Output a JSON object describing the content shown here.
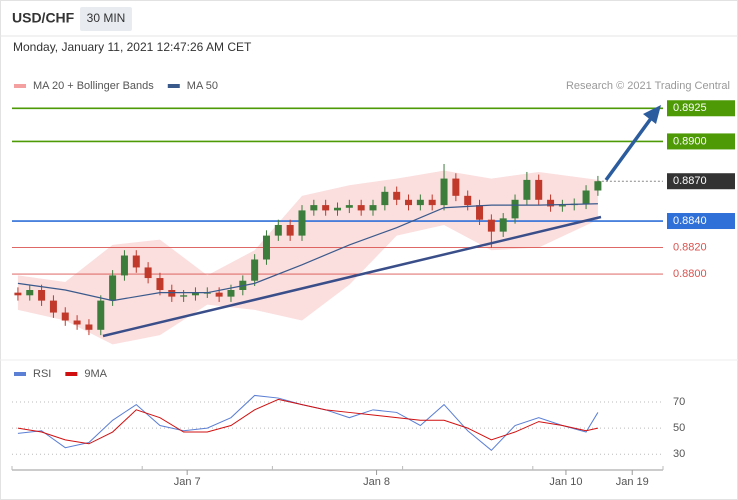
{
  "header": {
    "symbol": "USD/CHF",
    "interval": "30 MIN",
    "timestamp": "Monday, January 11, 2021 12:47:26 AM CET"
  },
  "chart_data": [
    {
      "type": "candlestick",
      "annotation": "Research © 2021 Trading Central",
      "xlim": [
        -0.5,
        54.5
      ],
      "ylim": [
        0.8739,
        0.8935
      ],
      "up_color": "#3c7d3c",
      "down_color": "#c0392b",
      "open": [
        0.8786,
        0.8784,
        0.8788,
        0.878,
        0.8771,
        0.8765,
        0.8762,
        0.8758,
        0.878,
        0.8799,
        0.8814,
        0.8805,
        0.8797,
        0.8788,
        0.8783,
        0.8784,
        0.8786,
        0.8786,
        0.8783,
        0.8788,
        0.8795,
        0.8811,
        0.8829,
        0.8837,
        0.8829,
        0.8848,
        0.8852,
        0.8848,
        0.885,
        0.8852,
        0.8848,
        0.8852,
        0.8862,
        0.8856,
        0.8852,
        0.8856,
        0.8852,
        0.8872,
        0.8859,
        0.8852,
        0.8841,
        0.8832,
        0.8842,
        0.8856,
        0.8871,
        0.8856,
        0.8851,
        0.8852,
        0.8853,
        0.8863
      ],
      "high": [
        0.879,
        0.8792,
        0.8792,
        0.8784,
        0.8775,
        0.8769,
        0.8766,
        0.8784,
        0.8803,
        0.8818,
        0.8818,
        0.8809,
        0.8801,
        0.8792,
        0.8788,
        0.879,
        0.879,
        0.879,
        0.8792,
        0.8799,
        0.8815,
        0.8833,
        0.8841,
        0.8841,
        0.8852,
        0.8856,
        0.8856,
        0.8854,
        0.8856,
        0.8856,
        0.8856,
        0.8866,
        0.8866,
        0.886,
        0.886,
        0.886,
        0.8883,
        0.8876,
        0.8863,
        0.8856,
        0.8845,
        0.8846,
        0.886,
        0.8877,
        0.8875,
        0.886,
        0.8856,
        0.8857,
        0.8867,
        0.8874
      ],
      "low": [
        0.878,
        0.878,
        0.8776,
        0.8767,
        0.8761,
        0.8758,
        0.8754,
        0.8754,
        0.8776,
        0.8795,
        0.8801,
        0.8793,
        0.8784,
        0.8779,
        0.8779,
        0.878,
        0.8782,
        0.8779,
        0.8779,
        0.8784,
        0.8791,
        0.8807,
        0.8825,
        0.8825,
        0.8825,
        0.8844,
        0.8844,
        0.8844,
        0.8846,
        0.8844,
        0.8844,
        0.8848,
        0.8852,
        0.8848,
        0.8848,
        0.8848,
        0.8848,
        0.8855,
        0.8848,
        0.8837,
        0.882,
        0.8828,
        0.8838,
        0.8852,
        0.8852,
        0.8847,
        0.8847,
        0.8848,
        0.8849,
        0.8859
      ],
      "close": [
        0.8784,
        0.8788,
        0.878,
        0.8771,
        0.8765,
        0.8762,
        0.8758,
        0.878,
        0.8799,
        0.8814,
        0.8805,
        0.8797,
        0.8788,
        0.8783,
        0.8784,
        0.8786,
        0.8786,
        0.8783,
        0.8788,
        0.8795,
        0.8811,
        0.8829,
        0.8837,
        0.8829,
        0.8848,
        0.8852,
        0.8848,
        0.885,
        0.8852,
        0.8848,
        0.8852,
        0.8862,
        0.8856,
        0.8852,
        0.8856,
        0.8852,
        0.8872,
        0.8859,
        0.8852,
        0.8841,
        0.8832,
        0.8842,
        0.8856,
        0.8871,
        0.8856,
        0.8851,
        0.8852,
        0.8853,
        0.8863,
        0.887
      ],
      "series": [
        {
          "name": "MA 20 + Bollinger Bands",
          "color": "#f4a0a0",
          "x": [
            0,
            4,
            8,
            12,
            16,
            20,
            24,
            28,
            32,
            36,
            40,
            44,
            49
          ],
          "upper": [
            0.8799,
            0.8794,
            0.8822,
            0.8826,
            0.8799,
            0.8818,
            0.8859,
            0.8867,
            0.8872,
            0.8878,
            0.8872,
            0.8877,
            0.8871
          ],
          "lower": [
            0.8773,
            0.8765,
            0.8747,
            0.8754,
            0.8777,
            0.8773,
            0.8765,
            0.8792,
            0.8829,
            0.8837,
            0.8818,
            0.882,
            0.8841
          ]
        },
        {
          "name": "MA 50",
          "color": "#3a5a8c",
          "x": [
            0,
            4,
            8,
            12,
            16,
            20,
            24,
            28,
            32,
            36,
            40,
            44,
            49
          ],
          "values": [
            0.8793,
            0.8788,
            0.878,
            0.8786,
            0.8786,
            0.8793,
            0.8807,
            0.8822,
            0.8835,
            0.885,
            0.8852,
            0.8852,
            0.8853
          ]
        }
      ],
      "levels": [
        {
          "value": 0.8925,
          "label": "0.8925",
          "color": "#4d9a06",
          "boxed": true,
          "dotted": false
        },
        {
          "value": 0.89,
          "label": "0.8900",
          "color": "#4d9a06",
          "boxed": true,
          "dotted": false
        },
        {
          "value": 0.887,
          "label": "0.8870",
          "color": "#333333",
          "boxed": true,
          "dotted": true
        },
        {
          "value": 0.884,
          "label": "0.8840",
          "color": "#2f6fd8",
          "boxed": true,
          "dotted": false
        },
        {
          "value": 0.882,
          "label": "0.8820",
          "color": "#d9534f",
          "boxed": false,
          "dotted": false
        },
        {
          "value": 0.88,
          "label": "0.8800",
          "color": "#d9534f",
          "boxed": false,
          "dotted": false
        }
      ]
    },
    {
      "type": "line",
      "xlim": [
        -0.5,
        54.5
      ],
      "ylim": [
        21,
        83
      ],
      "yticks": [
        30,
        50,
        70
      ],
      "grid": true,
      "xticks": [
        {
          "value": 14.3,
          "label": "Jan 7"
        },
        {
          "value": 30.3,
          "label": "Jan 8"
        },
        {
          "value": 46.3,
          "label": "Jan 10"
        },
        {
          "value": 51.9,
          "label": "Jan 19"
        }
      ],
      "series": [
        {
          "name": "RSI",
          "color": "#5b7fd4",
          "x": [
            0,
            2,
            4,
            6,
            8,
            10,
            12,
            14,
            16,
            18,
            20,
            22,
            24,
            26,
            28,
            30,
            32,
            34,
            36,
            38,
            40,
            42,
            44,
            46,
            48,
            49
          ],
          "values": [
            46,
            48,
            35,
            39,
            56,
            68,
            52,
            48,
            50,
            58,
            75,
            73,
            68,
            64,
            58,
            64,
            62,
            52,
            68,
            48,
            33,
            52,
            58,
            52,
            47,
            62
          ]
        },
        {
          "name": "9MA",
          "color": "#d01010",
          "x": [
            0,
            2,
            4,
            6,
            8,
            10,
            12,
            14,
            16,
            18,
            20,
            22,
            24,
            26,
            28,
            30,
            32,
            34,
            36,
            38,
            40,
            42,
            44,
            46,
            48,
            49
          ],
          "values": [
            50,
            47,
            41,
            38,
            47,
            64,
            58,
            47,
            47,
            52,
            64,
            72,
            68,
            64,
            62,
            60,
            58,
            56,
            56,
            50,
            41,
            47,
            55,
            52,
            48,
            50
          ]
        }
      ]
    }
  ]
}
